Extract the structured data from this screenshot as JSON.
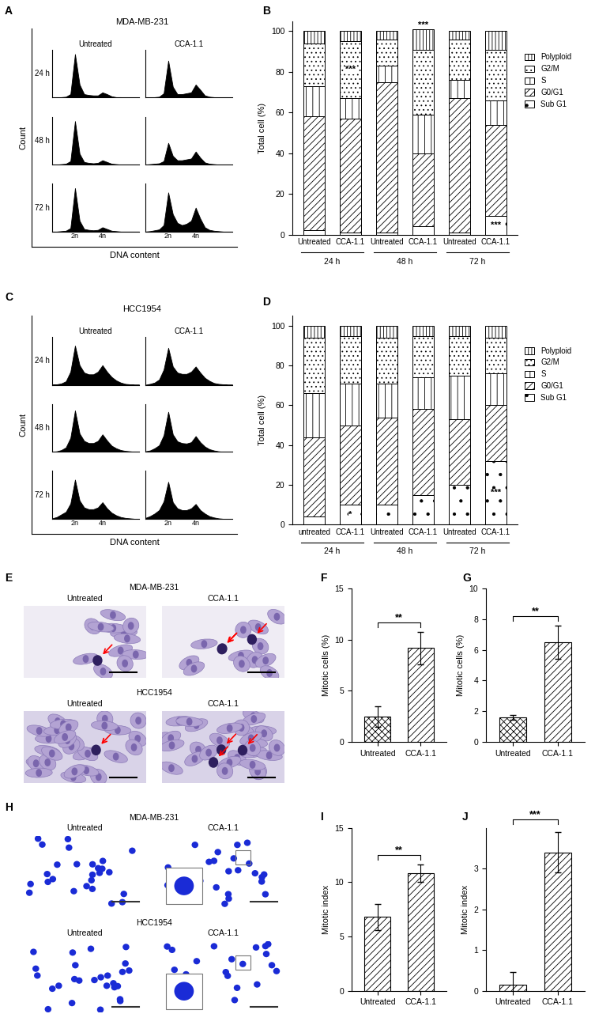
{
  "chart_data": [
    {
      "type": "flow_histograms",
      "panel_label": "A",
      "title": "MDA-MB-231",
      "columns": [
        "Untreated",
        "CCA-1.1"
      ],
      "rows": [
        "24 h",
        "48 h",
        "72 h"
      ],
      "x_label": "DNA content",
      "y_label": "Count",
      "color": "#000000",
      "xlim": [
        0,
        19
      ],
      "ylim": [
        0,
        110
      ],
      "tick_labels": "x",
      "xticks": [
        {
          "value": 5,
          "label": "2n"
        },
        {
          "value": 11,
          "label": "4n"
        }
      ],
      "profiles": [
        [
          [
            0,
            0,
            1,
            2,
            8,
            100,
            30,
            8,
            6,
            5,
            5,
            12,
            8,
            3,
            1,
            1,
            0,
            0,
            0,
            0
          ],
          [
            0,
            0,
            1,
            2,
            10,
            85,
            25,
            8,
            8,
            10,
            12,
            30,
            18,
            5,
            2,
            1,
            0,
            0,
            0,
            0
          ]
        ],
        [
          [
            0,
            0,
            1,
            2,
            8,
            100,
            25,
            6,
            4,
            3,
            4,
            10,
            6,
            2,
            1,
            0,
            0,
            0,
            0,
            0
          ],
          [
            0,
            1,
            2,
            3,
            8,
            50,
            20,
            10,
            10,
            12,
            14,
            30,
            16,
            5,
            2,
            1,
            0,
            0,
            0,
            0
          ]
        ],
        [
          [
            0,
            0,
            1,
            2,
            8,
            100,
            25,
            6,
            4,
            3,
            4,
            10,
            6,
            2,
            1,
            0,
            0,
            0,
            0,
            0
          ],
          [
            0,
            1,
            3,
            5,
            15,
            90,
            40,
            20,
            15,
            18,
            25,
            55,
            30,
            10,
            4,
            2,
            1,
            0,
            0,
            0
          ]
        ]
      ]
    },
    {
      "type": "bar",
      "stacked": true,
      "panel_label": "B",
      "y_label": "Total cell (%)",
      "categories": [
        "Untreated",
        "CCA-1.1",
        "Untreated",
        "CCA-1.1",
        "Untreated",
        "CCA-1.1"
      ],
      "groups": [
        "24 h",
        "48 h",
        "72 h"
      ],
      "ylim": [
        0,
        105
      ],
      "yticks": [
        0,
        20,
        40,
        60,
        80,
        100
      ],
      "legend": "right",
      "series": [
        {
          "name": "Sub G1",
          "color": "#ffffff",
          "values": [
            2,
            1,
            1,
            4,
            1,
            9
          ]
        },
        {
          "name": "G0/G1",
          "color": "#ffffff",
          "values": [
            56,
            56,
            74,
            36,
            66,
            45
          ]
        },
        {
          "name": "S",
          "color": "#ffffff",
          "values": [
            15,
            10,
            8,
            19,
            9,
            12
          ]
        },
        {
          "name": "G2/M",
          "color": "#ffffff",
          "values": [
            21,
            28,
            13,
            32,
            20,
            25
          ]
        },
        {
          "name": "Polyploid",
          "color": "#ffffff",
          "values": [
            6,
            5,
            4,
            10,
            4,
            9
          ]
        }
      ],
      "annotations": [
        {
          "text": "***",
          "category": 1,
          "series": "G2/M"
        },
        {
          "text": "***",
          "category": 3
        },
        {
          "text": "***",
          "category": 5,
          "series": "Sub G1"
        }
      ]
    },
    {
      "type": "flow_histograms",
      "panel_label": "C",
      "title": "HCC1954",
      "columns": [
        "Untreated",
        "CCA-1.1"
      ],
      "rows": [
        "24 h",
        "48 h",
        "72 h"
      ],
      "x_label": "DNA content",
      "y_label": "Count",
      "color": "#000000",
      "xlim": [
        0,
        19
      ],
      "ylim": [
        0,
        110
      ],
      "tick_labels": "x",
      "xticks": [
        {
          "value": 5,
          "label": "2n"
        },
        {
          "value": 11,
          "label": "4n"
        }
      ],
      "profiles": [
        [
          [
            0,
            1,
            3,
            8,
            30,
            90,
            45,
            28,
            24,
            24,
            30,
            45,
            30,
            18,
            10,
            5,
            2,
            1,
            0,
            0
          ],
          [
            0,
            2,
            5,
            12,
            35,
            85,
            42,
            28,
            25,
            25,
            30,
            42,
            28,
            16,
            9,
            4,
            2,
            1,
            0,
            0
          ]
        ],
        [
          [
            0,
            1,
            4,
            10,
            32,
            95,
            42,
            25,
            20,
            20,
            25,
            40,
            26,
            14,
            8,
            4,
            2,
            1,
            0,
            0
          ],
          [
            1,
            3,
            8,
            15,
            38,
            92,
            40,
            24,
            20,
            19,
            22,
            36,
            22,
            12,
            6,
            3,
            1,
            0,
            0,
            0
          ]
        ],
        [
          [
            1,
            4,
            10,
            16,
            35,
            90,
            42,
            26,
            22,
            22,
            26,
            38,
            24,
            14,
            8,
            4,
            2,
            1,
            0,
            0
          ],
          [
            2,
            6,
            12,
            20,
            40,
            85,
            38,
            24,
            20,
            20,
            24,
            34,
            20,
            12,
            6,
            3,
            1,
            0,
            0,
            0
          ]
        ]
      ]
    },
    {
      "type": "bar",
      "stacked": true,
      "panel_label": "D",
      "y_label": "Total cell (%)",
      "categories": [
        "untreated",
        "CCA-1.1",
        "Untreated",
        "CCA-1.1",
        "Untreated",
        "CCA-1.1"
      ],
      "groups": [
        "24 h",
        "48 h",
        "72 h"
      ],
      "ylim": [
        0,
        105
      ],
      "yticks": [
        0,
        20,
        40,
        60,
        80,
        100
      ],
      "legend": "right",
      "series": [
        {
          "name": "Sub G1",
          "color": "#ffffff",
          "values": [
            4,
            10,
            10,
            15,
            20,
            32
          ]
        },
        {
          "name": "G0/G1",
          "color": "#ffffff",
          "values": [
            40,
            40,
            44,
            43,
            33,
            28
          ]
        },
        {
          "name": "S",
          "color": "#ffffff",
          "values": [
            22,
            21,
            17,
            16,
            22,
            16
          ]
        },
        {
          "name": "G2/M",
          "color": "#ffffff",
          "values": [
            28,
            24,
            23,
            21,
            20,
            18
          ]
        },
        {
          "name": "Polyploid",
          "color": "#ffffff",
          "values": [
            6,
            5,
            6,
            5,
            5,
            6
          ]
        }
      ],
      "annotations": [
        {
          "text": "*",
          "category": 1,
          "series": "Sub G1"
        },
        {
          "text": "***",
          "category": 5,
          "series": "Sub G1"
        }
      ]
    },
    {
      "type": "brightfield",
      "panel_label": "E",
      "rows": [
        "MDA-MB-231",
        "HCC1954"
      ],
      "columns": [
        "Untreated",
        "CCA-1.1"
      ]
    },
    {
      "type": "bar",
      "panel_label": "F",
      "y_label": "Mitotic cells (%)",
      "color": "#ffffff",
      "categories": [
        "Untreated",
        "CCA-1.1"
      ],
      "values": [
        2.5,
        9.2
      ],
      "errors": [
        1.0,
        1.6
      ],
      "ylim": [
        0,
        15
      ],
      "yticks": [
        0,
        5,
        10,
        15
      ],
      "significance": "**"
    },
    {
      "type": "bar",
      "panel_label": "G",
      "y_label": "Mitotic cells (%)",
      "color": "#ffffff",
      "categories": [
        "Untreated",
        "CCA-1.1"
      ],
      "values": [
        1.6,
        6.5
      ],
      "errors": [
        0.15,
        1.1
      ],
      "ylim": [
        0,
        10
      ],
      "yticks": [
        0,
        2,
        4,
        6,
        8,
        10
      ],
      "significance": "**"
    },
    {
      "type": "fluorescence",
      "panel_label": "H",
      "rows": [
        "MDA-MB-231",
        "HCC1954"
      ],
      "columns": [
        "Untreated",
        "CCA-1.1"
      ]
    },
    {
      "type": "bar",
      "panel_label": "I",
      "y_label": "Mitotic index",
      "color": "#ffffff",
      "categories": [
        "Untreated",
        "CCA-1.1"
      ],
      "values": [
        6.8,
        10.8
      ],
      "errors": [
        1.2,
        0.8
      ],
      "ylim": [
        0,
        15
      ],
      "yticks": [
        0,
        5,
        10,
        15
      ],
      "significance": "**"
    },
    {
      "type": "bar",
      "panel_label": "J",
      "y_label": "Mitotic index",
      "color": "#ffffff",
      "categories": [
        "Untreated",
        "CCA-1.1"
      ],
      "values": [
        0.15,
        3.4
      ],
      "errors": [
        0.3,
        0.5
      ],
      "ylim": [
        0,
        4
      ],
      "yticks": [
        0,
        1,
        2,
        3
      ],
      "significance": "***"
    }
  ]
}
